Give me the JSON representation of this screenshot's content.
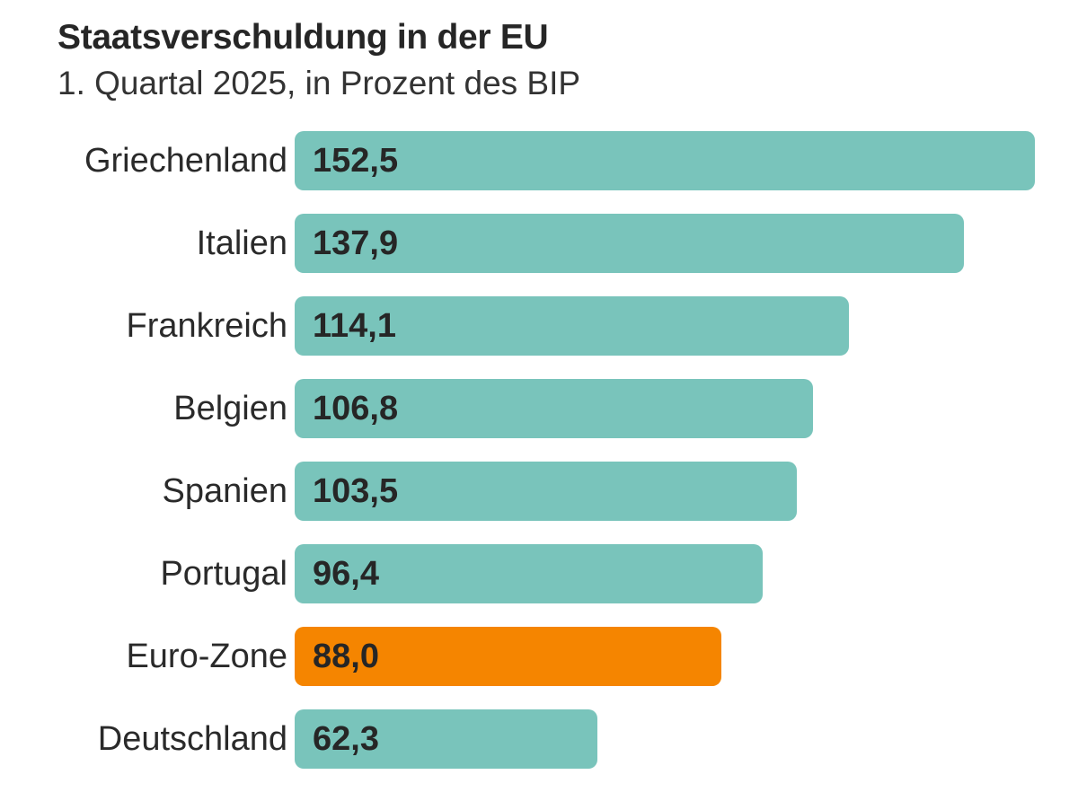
{
  "chart_data": {
    "type": "bar",
    "orientation": "horizontal",
    "title": "Staatsverschuldung in der EU",
    "subtitle": "1. Quartal 2025, in Prozent des BIP",
    "categories": [
      "Griechenland",
      "Italien",
      "Frankreich",
      "Belgien",
      "Spanien",
      "Portugal",
      "Euro-Zone",
      "Deutschland"
    ],
    "values": [
      152.5,
      137.9,
      114.1,
      106.8,
      103.5,
      96.4,
      88.0,
      62.3
    ],
    "value_labels": [
      "152,5",
      "137,9",
      "114,1",
      "106,8",
      "103,5",
      "96,4",
      "88,0",
      "62,3"
    ],
    "highlight": "Euro-Zone",
    "xlim": [
      0,
      152.5
    ],
    "grid": false,
    "colors": {
      "default": "#79c4bb",
      "highlight": "#f58500"
    }
  }
}
